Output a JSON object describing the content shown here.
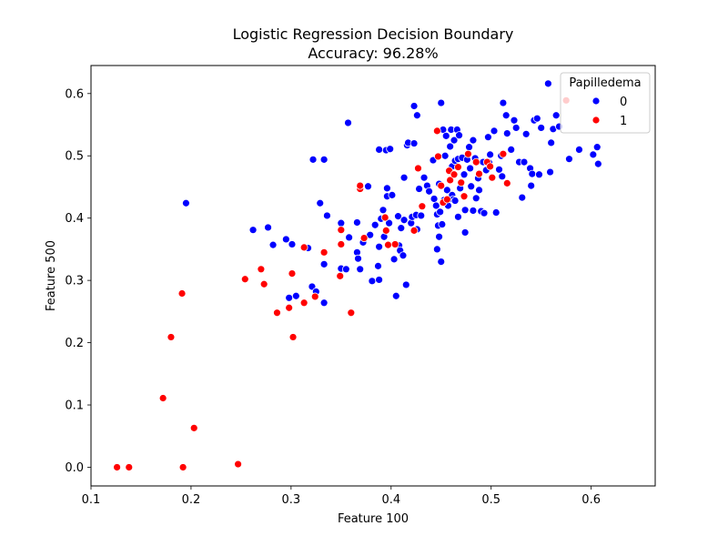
{
  "chart_data": {
    "type": "scatter",
    "title_line1": "Logistic Regression Decision Boundary",
    "title_line2": "Accuracy: 96.28%",
    "xlabel": "Feature 100",
    "ylabel": "Feature 500",
    "xlim": [
      0.1,
      0.664
    ],
    "ylim": [
      -0.03,
      0.645
    ],
    "xticks": [
      0.1,
      0.2,
      0.3,
      0.4,
      0.5,
      0.6
    ],
    "xtick_labels": [
      "0.1",
      "0.2",
      "0.3",
      "0.4",
      "0.5",
      "0.6"
    ],
    "yticks": [
      0.0,
      0.1,
      0.2,
      0.3,
      0.4,
      0.5,
      0.6
    ],
    "ytick_labels": [
      "0.0",
      "0.1",
      "0.2",
      "0.3",
      "0.4",
      "0.5",
      "0.6"
    ],
    "grid": false,
    "legend": {
      "title": "Papilledema",
      "placement": "top-right",
      "entries": [
        {
          "label": "0",
          "color": "#0000ff"
        },
        {
          "label": "1",
          "color": "#ff0000"
        }
      ]
    },
    "series": [
      {
        "name": "0",
        "color": "#0000ff",
        "points": [
          [
            0.195,
            0.424
          ],
          [
            0.262,
            0.381
          ],
          [
            0.277,
            0.385
          ],
          [
            0.282,
            0.357
          ],
          [
            0.295,
            0.366
          ],
          [
            0.301,
            0.358
          ],
          [
            0.298,
            0.272
          ],
          [
            0.305,
            0.275
          ],
          [
            0.317,
            0.352
          ],
          [
            0.321,
            0.29
          ],
          [
            0.325,
            0.282
          ],
          [
            0.329,
            0.424
          ],
          [
            0.322,
            0.494
          ],
          [
            0.333,
            0.494
          ],
          [
            0.336,
            0.404
          ],
          [
            0.333,
            0.326
          ],
          [
            0.333,
            0.264
          ],
          [
            0.35,
            0.392
          ],
          [
            0.35,
            0.319
          ],
          [
            0.355,
            0.318
          ],
          [
            0.357,
            0.553
          ],
          [
            0.358,
            0.369
          ],
          [
            0.366,
            0.393
          ],
          [
            0.366,
            0.345
          ],
          [
            0.367,
            0.335
          ],
          [
            0.369,
            0.318
          ],
          [
            0.372,
            0.361
          ],
          [
            0.377,
            0.451
          ],
          [
            0.379,
            0.373
          ],
          [
            0.381,
            0.299
          ],
          [
            0.384,
            0.389
          ],
          [
            0.387,
            0.323
          ],
          [
            0.388,
            0.301
          ],
          [
            0.388,
            0.51
          ],
          [
            0.388,
            0.354
          ],
          [
            0.39,
            0.399
          ],
          [
            0.392,
            0.413
          ],
          [
            0.393,
            0.37
          ],
          [
            0.395,
            0.509
          ],
          [
            0.396,
            0.435
          ],
          [
            0.396,
            0.448
          ],
          [
            0.398,
            0.392
          ],
          [
            0.399,
            0.511
          ],
          [
            0.401,
            0.437
          ],
          [
            0.403,
            0.334
          ],
          [
            0.405,
            0.275
          ],
          [
            0.407,
            0.403
          ],
          [
            0.408,
            0.356
          ],
          [
            0.409,
            0.348
          ],
          [
            0.41,
            0.384
          ],
          [
            0.412,
            0.34
          ],
          [
            0.413,
            0.465
          ],
          [
            0.413,
            0.397
          ],
          [
            0.415,
            0.293
          ],
          [
            0.416,
            0.517
          ],
          [
            0.417,
            0.521
          ],
          [
            0.42,
            0.392
          ],
          [
            0.421,
            0.402
          ],
          [
            0.423,
            0.52
          ],
          [
            0.423,
            0.58
          ],
          [
            0.425,
            0.405
          ],
          [
            0.426,
            0.565
          ],
          [
            0.426,
            0.382
          ],
          [
            0.428,
            0.447
          ],
          [
            0.43,
            0.404
          ],
          [
            0.431,
            0.419
          ],
          [
            0.433,
            0.465
          ],
          [
            0.436,
            0.452
          ],
          [
            0.438,
            0.443
          ],
          [
            0.442,
            0.493
          ],
          [
            0.443,
            0.431
          ],
          [
            0.445,
            0.42
          ],
          [
            0.446,
            0.406
          ],
          [
            0.446,
            0.35
          ],
          [
            0.447,
            0.388
          ],
          [
            0.448,
            0.37
          ],
          [
            0.448,
            0.455
          ],
          [
            0.449,
            0.41
          ],
          [
            0.45,
            0.585
          ],
          [
            0.45,
            0.33
          ],
          [
            0.451,
            0.39
          ],
          [
            0.452,
            0.542
          ],
          [
            0.453,
            0.429
          ],
          [
            0.454,
            0.5
          ],
          [
            0.455,
            0.532
          ],
          [
            0.456,
            0.445
          ],
          [
            0.457,
            0.42
          ],
          [
            0.459,
            0.515
          ],
          [
            0.46,
            0.542
          ],
          [
            0.461,
            0.483
          ],
          [
            0.461,
            0.437
          ],
          [
            0.462,
            0.43
          ],
          [
            0.463,
            0.525
          ],
          [
            0.464,
            0.492
          ],
          [
            0.464,
            0.428
          ],
          [
            0.466,
            0.542
          ],
          [
            0.467,
            0.495
          ],
          [
            0.467,
            0.402
          ],
          [
            0.468,
            0.533
          ],
          [
            0.469,
            0.448
          ],
          [
            0.47,
            0.458
          ],
          [
            0.471,
            0.497
          ],
          [
            0.473,
            0.47
          ],
          [
            0.474,
            0.413
          ],
          [
            0.474,
            0.377
          ],
          [
            0.476,
            0.494
          ],
          [
            0.478,
            0.514
          ],
          [
            0.479,
            0.48
          ],
          [
            0.48,
            0.451
          ],
          [
            0.482,
            0.525
          ],
          [
            0.482,
            0.412
          ],
          [
            0.484,
            0.496
          ],
          [
            0.485,
            0.432
          ],
          [
            0.487,
            0.464
          ],
          [
            0.488,
            0.445
          ],
          [
            0.49,
            0.411
          ],
          [
            0.492,
            0.49
          ],
          [
            0.493,
            0.408
          ],
          [
            0.495,
            0.477
          ],
          [
            0.497,
            0.53
          ],
          [
            0.498,
            0.489
          ],
          [
            0.499,
            0.502
          ],
          [
            0.501,
            0.466
          ],
          [
            0.503,
            0.54
          ],
          [
            0.505,
            0.409
          ],
          [
            0.508,
            0.478
          ],
          [
            0.51,
            0.5
          ],
          [
            0.511,
            0.467
          ],
          [
            0.512,
            0.585
          ],
          [
            0.515,
            0.565
          ],
          [
            0.516,
            0.536
          ],
          [
            0.52,
            0.51
          ],
          [
            0.523,
            0.557
          ],
          [
            0.525,
            0.545
          ],
          [
            0.528,
            0.49
          ],
          [
            0.531,
            0.433
          ],
          [
            0.533,
            0.49
          ],
          [
            0.535,
            0.535
          ],
          [
            0.539,
            0.48
          ],
          [
            0.54,
            0.452
          ],
          [
            0.541,
            0.471
          ],
          [
            0.543,
            0.557
          ],
          [
            0.546,
            0.56
          ],
          [
            0.548,
            0.47
          ],
          [
            0.55,
            0.545
          ],
          [
            0.557,
            0.616
          ],
          [
            0.559,
            0.474
          ],
          [
            0.56,
            0.521
          ],
          [
            0.562,
            0.543
          ],
          [
            0.565,
            0.565
          ],
          [
            0.568,
            0.547
          ],
          [
            0.578,
            0.495
          ],
          [
            0.588,
            0.51
          ],
          [
            0.602,
            0.502
          ],
          [
            0.606,
            0.514
          ],
          [
            0.607,
            0.487
          ]
        ]
      },
      {
        "name": "1",
        "color": "#ff0000",
        "points": [
          [
            0.126,
            0.0
          ],
          [
            0.138,
            0.0
          ],
          [
            0.172,
            0.111
          ],
          [
            0.18,
            0.209
          ],
          [
            0.191,
            0.279
          ],
          [
            0.192,
            0.0
          ],
          [
            0.203,
            0.063
          ],
          [
            0.247,
            0.005
          ],
          [
            0.254,
            0.302
          ],
          [
            0.27,
            0.318
          ],
          [
            0.273,
            0.294
          ],
          [
            0.286,
            0.248
          ],
          [
            0.298,
            0.256
          ],
          [
            0.301,
            0.311
          ],
          [
            0.302,
            0.209
          ],
          [
            0.313,
            0.353
          ],
          [
            0.313,
            0.264
          ],
          [
            0.324,
            0.274
          ],
          [
            0.333,
            0.345
          ],
          [
            0.349,
            0.307
          ],
          [
            0.35,
            0.381
          ],
          [
            0.35,
            0.358
          ],
          [
            0.36,
            0.248
          ],
          [
            0.369,
            0.447
          ],
          [
            0.369,
            0.452
          ],
          [
            0.373,
            0.368
          ],
          [
            0.394,
            0.401
          ],
          [
            0.395,
            0.38
          ],
          [
            0.397,
            0.357
          ],
          [
            0.404,
            0.358
          ],
          [
            0.423,
            0.38
          ],
          [
            0.427,
            0.48
          ],
          [
            0.431,
            0.419
          ],
          [
            0.446,
            0.54
          ],
          [
            0.447,
            0.499
          ],
          [
            0.45,
            0.452
          ],
          [
            0.452,
            0.425
          ],
          [
            0.456,
            0.43
          ],
          [
            0.458,
            0.476
          ],
          [
            0.459,
            0.461
          ],
          [
            0.463,
            0.47
          ],
          [
            0.467,
            0.482
          ],
          [
            0.47,
            0.457
          ],
          [
            0.473,
            0.435
          ],
          [
            0.477,
            0.503
          ],
          [
            0.485,
            0.49
          ],
          [
            0.488,
            0.471
          ],
          [
            0.496,
            0.49
          ],
          [
            0.499,
            0.483
          ],
          [
            0.501,
            0.465
          ],
          [
            0.512,
            0.503
          ],
          [
            0.516,
            0.456
          ],
          [
            0.575,
            0.589
          ]
        ]
      }
    ]
  }
}
